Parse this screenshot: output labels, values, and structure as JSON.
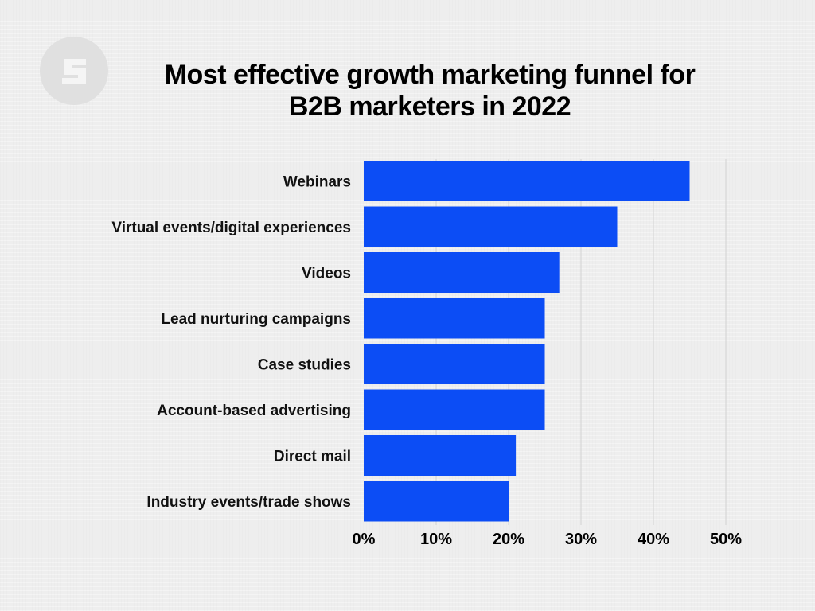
{
  "header": {
    "title_line1": "Most effective growth marketing funnel for",
    "title_line2": "B2B marketers in 2022"
  },
  "logo": {
    "icon": "s-logo-icon"
  },
  "colors": {
    "bar": "#0c4df5",
    "grid": "#d2d2d2",
    "background": "#eeeeee"
  },
  "chart_data": {
    "type": "bar",
    "orientation": "horizontal",
    "categories": [
      "Webinars",
      "Virtual events/digital experiences",
      "Videos",
      "Lead nurturing campaigns",
      "Case studies",
      "Account-based advertising",
      "Direct mail",
      "Industry events/trade shows"
    ],
    "values": [
      45,
      35,
      27,
      25,
      25,
      25,
      21,
      20
    ],
    "unit": "%",
    "xlim": [
      0,
      50
    ],
    "xticks": [
      0,
      10,
      20,
      30,
      40,
      50
    ],
    "xtick_labels": [
      "0%",
      "10%",
      "20%",
      "30%",
      "40%",
      "50%"
    ],
    "title": "Most effective growth marketing funnel for B2B marketers in 2022",
    "xlabel": "",
    "ylabel": "",
    "grid": true,
    "legend": "none"
  }
}
